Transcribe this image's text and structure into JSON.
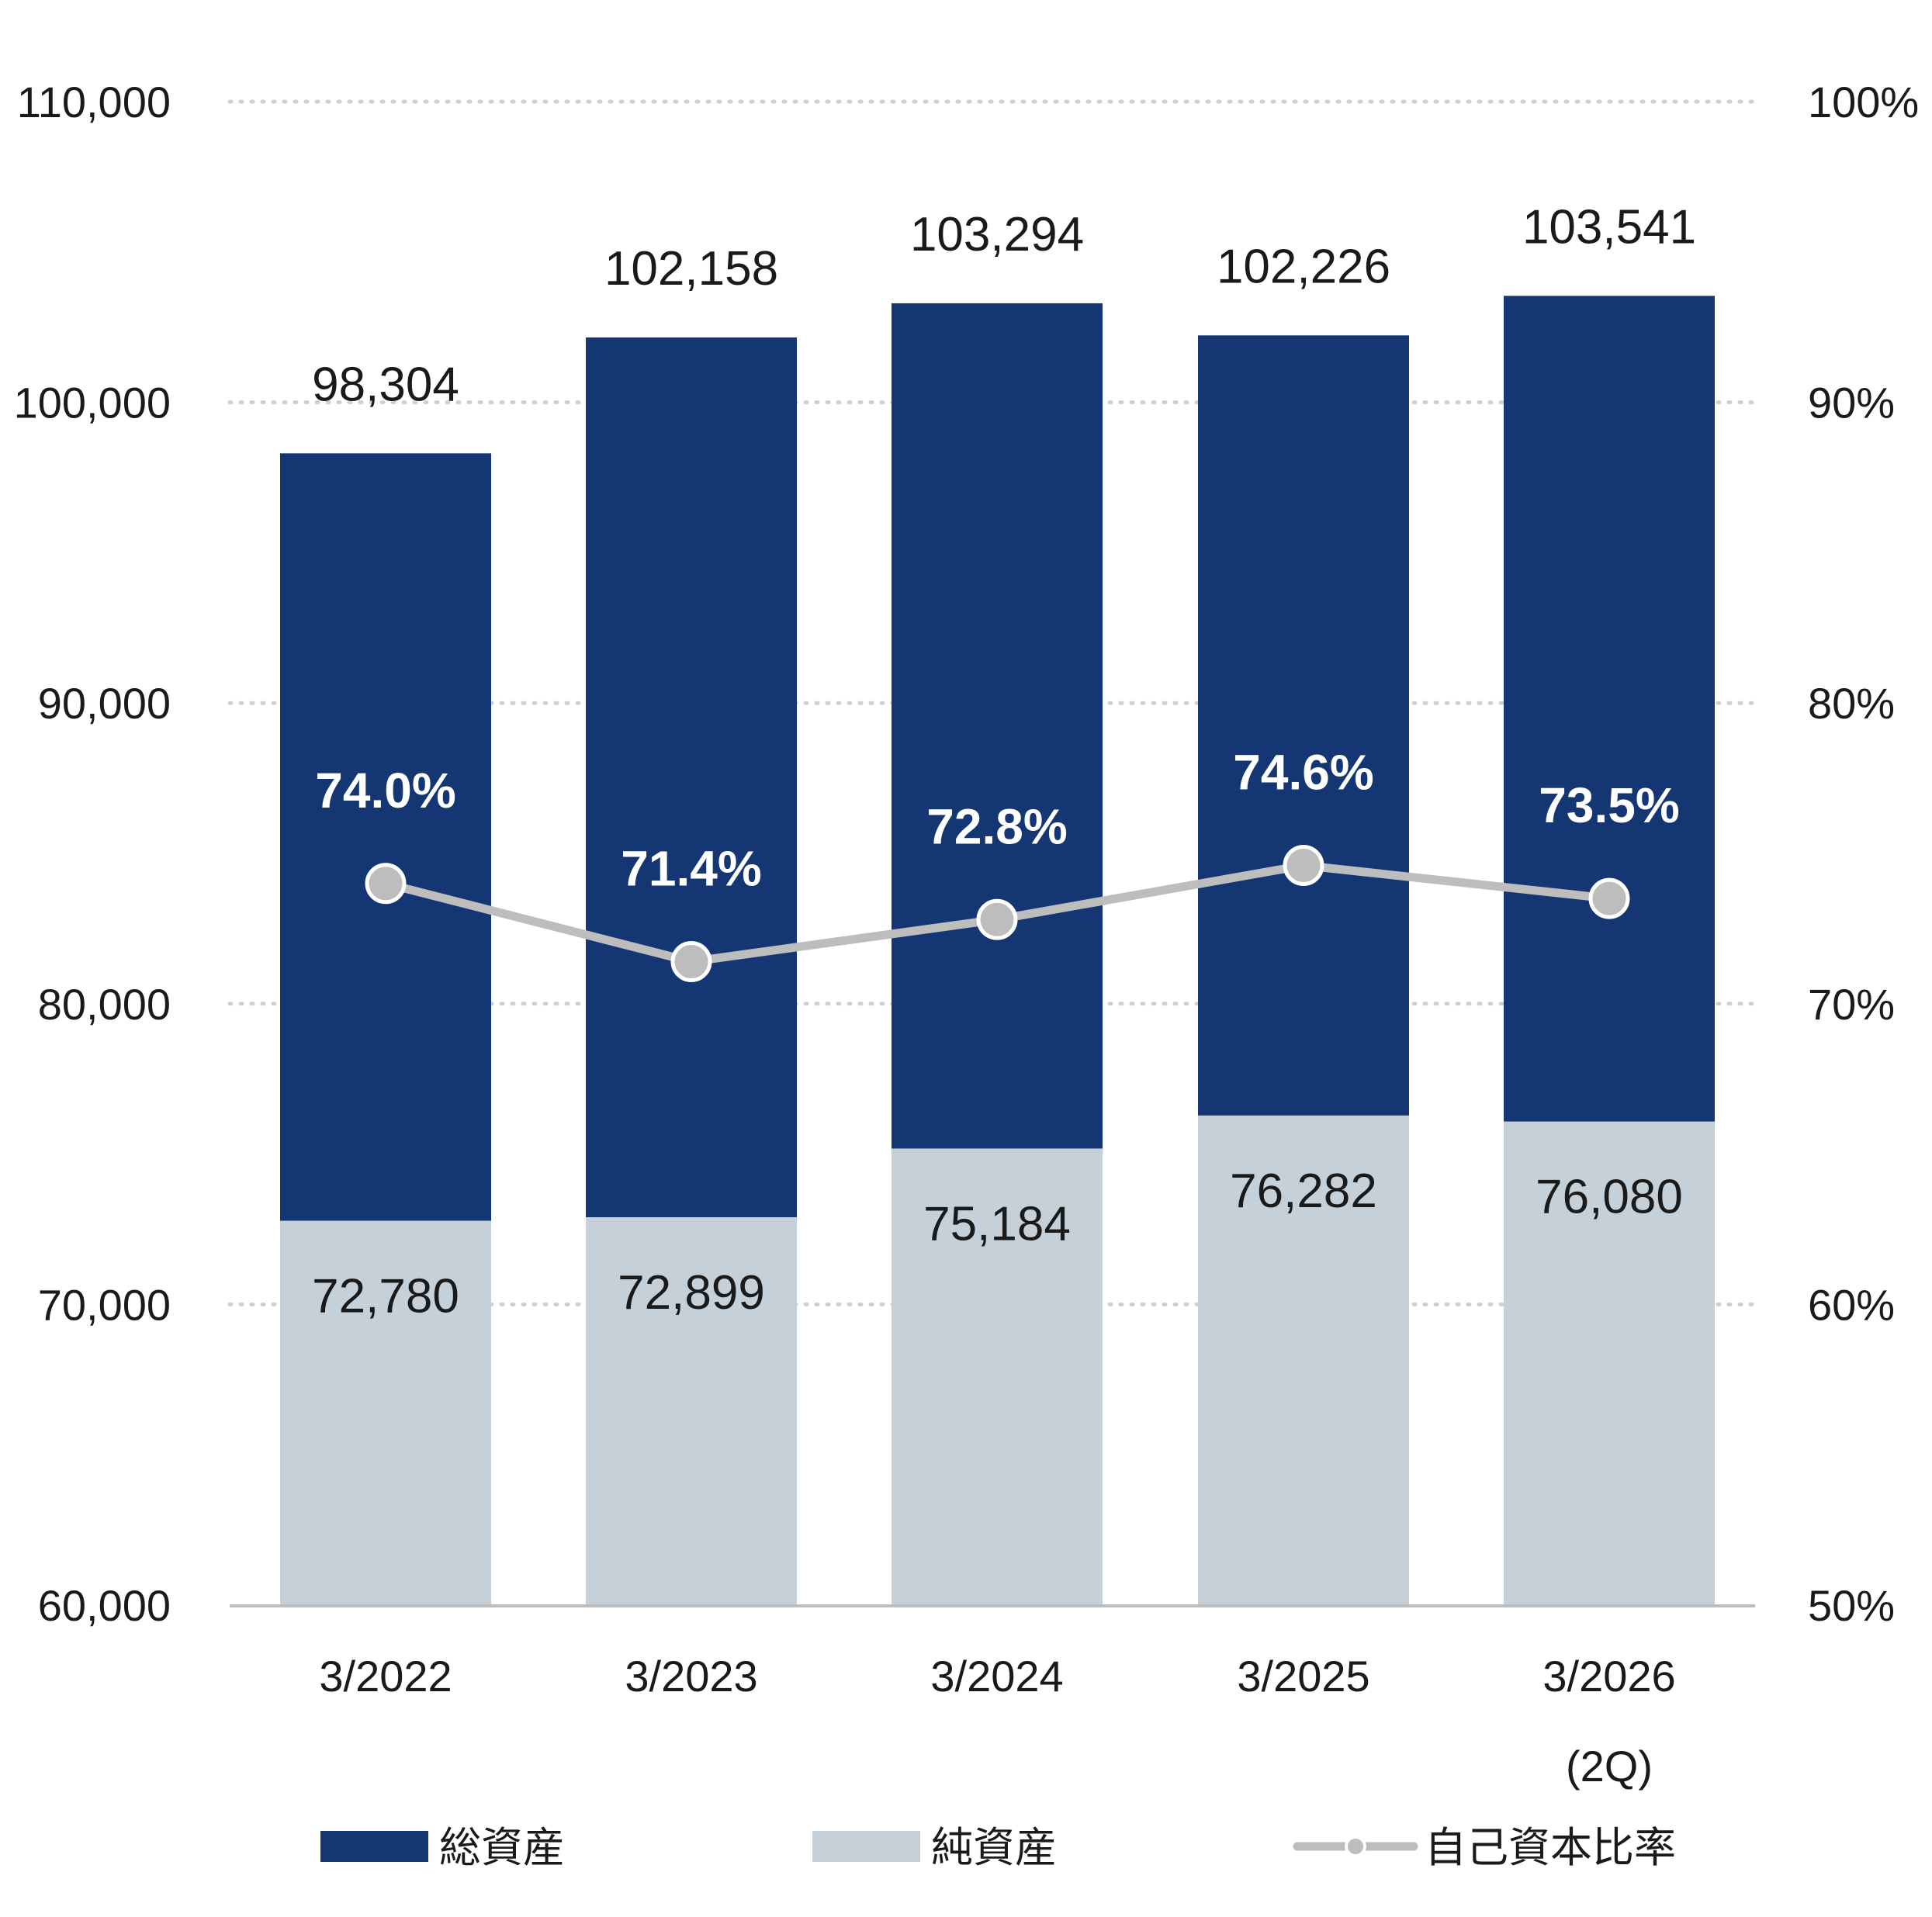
{
  "chart_data": {
    "type": "bar",
    "categories": [
      "3/2022",
      "3/2023",
      "3/2024",
      "3/2025",
      "3/2026"
    ],
    "category_sublabels": [
      "",
      "",
      "",
      "",
      "(2Q)"
    ],
    "series": [
      {
        "name": "総資産",
        "type": "bar",
        "axis": "left",
        "color": "#143673",
        "values": [
          98304,
          102158,
          103294,
          102226,
          103541
        ],
        "labels": [
          "98,304",
          "102,158",
          "103,294",
          "102,226",
          "103,541"
        ]
      },
      {
        "name": "純資産",
        "type": "bar",
        "axis": "left",
        "color": "#c5d0d8",
        "values": [
          72780,
          72899,
          75184,
          76282,
          76080
        ],
        "labels": [
          "72,780",
          "72,899",
          "75,184",
          "76,282",
          "76,080"
        ]
      },
      {
        "name": "自己資本比率",
        "type": "line",
        "axis": "right",
        "color": "#bdbdbd",
        "values": [
          74.0,
          71.4,
          72.8,
          74.6,
          73.5
        ],
        "labels": [
          "74.0%",
          "71.4%",
          "72.8%",
          "74.6%",
          "73.5%"
        ]
      }
    ],
    "y_left": {
      "min": 60000,
      "max": 110000,
      "ticks": [
        60000,
        70000,
        80000,
        90000,
        100000,
        110000
      ],
      "tick_labels": [
        "60,000",
        "70,000",
        "80,000",
        "90,000",
        "100,000",
        "110,000"
      ]
    },
    "y_right": {
      "min": 50,
      "max": 100,
      "ticks": [
        50,
        60,
        70,
        80,
        90,
        100
      ],
      "tick_labels": [
        "50%",
        "60%",
        "70%",
        "80%",
        "90%",
        "100%"
      ]
    },
    "grid": "dotted horizontal",
    "legend_position": "bottom"
  }
}
